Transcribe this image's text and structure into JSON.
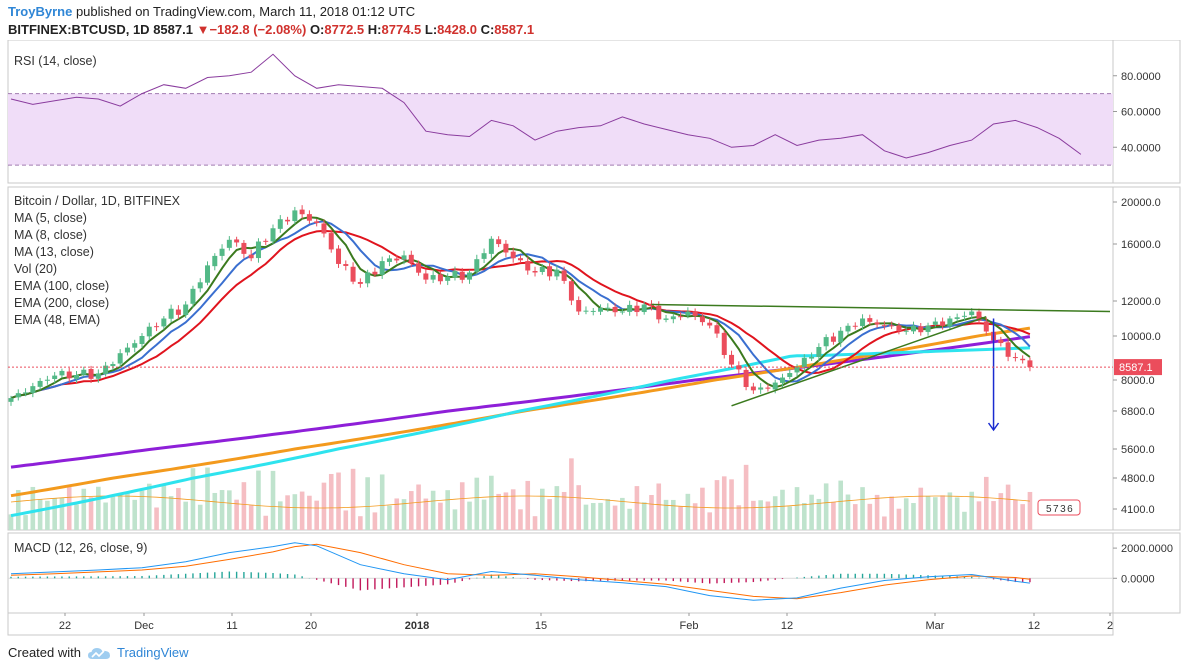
{
  "header": {
    "author": "TroyByrne",
    "published_text": "published on TradingView.com, March 11, 2018 01:12 UTC",
    "symbol": "BITFINEX:BTCUSD, 1D",
    "last": "8587.1",
    "change_arrow": "▼",
    "change": "−182.8 (−2.08%)",
    "o_label": "O:",
    "o": "8772.5",
    "h_label": "H:",
    "h": "8774.5",
    "l_label": "L:",
    "l": "8428.0",
    "c_label": "C:",
    "c": "8587.1"
  },
  "footer": {
    "created_with": "Created with",
    "brand": "TradingView",
    "icon": "tradingview-cloud-icon"
  },
  "colors": {
    "up": "#53b987",
    "down": "#eb4d5c",
    "ma5": "#3b7a1e",
    "ma8": "#3a6fd0",
    "ma13": "#e0141e",
    "ema100": "#f39a1d",
    "ema200": "#8e1fd8",
    "ema48": "#2ee3ee",
    "rsi": "#8a3c9e",
    "macd": "#2196f3",
    "signal": "#ff6d00",
    "trendline": "#3b7a1e",
    "projection": "#1a2bd0"
  },
  "chart_data": [
    {
      "type": "line",
      "title": "RSI (14, close)",
      "y_ticks": [
        "80.0000",
        "60.0000",
        "40.0000"
      ],
      "ylim": [
        20,
        100
      ],
      "bands": [
        30,
        70
      ],
      "series": [
        {
          "name": "RSI",
          "x_index": [
            0,
            3,
            6,
            9,
            12,
            15,
            18,
            21,
            24,
            27,
            30,
            33,
            36,
            39,
            42,
            45,
            48,
            51,
            54,
            57,
            60,
            63,
            66,
            69,
            72,
            75,
            78,
            81,
            84,
            87,
            90,
            93,
            96,
            99,
            102,
            105,
            108,
            111,
            114,
            117,
            120,
            123,
            126,
            129,
            132,
            135,
            138,
            141,
            144,
            147
          ],
          "values": [
            67,
            64,
            66,
            68,
            67,
            63,
            70,
            75,
            73,
            79,
            80,
            82,
            92,
            80,
            73,
            75,
            74,
            73,
            65,
            49,
            47,
            46,
            55,
            52,
            44,
            49,
            51,
            52,
            57,
            53,
            50,
            47,
            45,
            40,
            41,
            47,
            41,
            44,
            45,
            47,
            38,
            34,
            37,
            41,
            44,
            53,
            55,
            51,
            45,
            36
          ]
        }
      ]
    },
    {
      "type": "candlestick",
      "title": "Bitcoin / Dollar, 1D, BITFINEX",
      "legend": [
        "MA (5, close)",
        "MA (8, close)",
        "MA (13, close)",
        "Vol (20)",
        "EMA (100, close)",
        "EMA (200, close)",
        "EMA (48, EMA)"
      ],
      "y_ticks": [
        20000,
        16000,
        12000,
        10000,
        8000,
        6800,
        5600,
        4800,
        4100
      ],
      "last_price_label": "8587.1",
      "last_price": 8587.1,
      "x_ticks": [
        "22",
        "Dec",
        "11",
        "20",
        "2018",
        "15",
        "Feb",
        "12",
        "Mar",
        "12",
        "2"
      ],
      "close_anchors": [
        [
          0,
          7300
        ],
        [
          6,
          8200
        ],
        [
          12,
          8300
        ],
        [
          18,
          10000
        ],
        [
          21,
          11000
        ],
        [
          24,
          11800
        ],
        [
          27,
          14500
        ],
        [
          30,
          16400
        ],
        [
          33,
          15000
        ],
        [
          36,
          17500
        ],
        [
          39,
          19200
        ],
        [
          42,
          18000
        ],
        [
          45,
          14600
        ],
        [
          48,
          13200
        ],
        [
          51,
          14800
        ],
        [
          54,
          15200
        ],
        [
          57,
          13500
        ],
        [
          60,
          13700
        ],
        [
          63,
          14000
        ],
        [
          66,
          16500
        ],
        [
          69,
          15000
        ],
        [
          72,
          14000
        ],
        [
          75,
          14200
        ],
        [
          78,
          11400
        ],
        [
          81,
          11600
        ],
        [
          84,
          11400
        ],
        [
          87,
          11800
        ],
        [
          90,
          11000
        ],
        [
          93,
          11400
        ],
        [
          96,
          10600
        ],
        [
          99,
          8700
        ],
        [
          102,
          7600
        ],
        [
          105,
          7900
        ],
        [
          108,
          8600
        ],
        [
          111,
          9500
        ],
        [
          114,
          10300
        ],
        [
          117,
          11000
        ],
        [
          120,
          10600
        ],
        [
          123,
          10300
        ],
        [
          126,
          10600
        ],
        [
          129,
          11000
        ],
        [
          132,
          11400
        ],
        [
          135,
          9800
        ],
        [
          138,
          9000
        ],
        [
          140,
          8587.1
        ]
      ],
      "volume_note": "Vol (20) histogram, colored by candle direction",
      "volume_label": "5736",
      "trendlines": [
        {
          "name": "resistance",
          "from": [
            88,
            11800
          ],
          "to": [
            151,
            11400
          ]
        },
        {
          "name": "support",
          "from": [
            99,
            7000
          ],
          "to": [
            134,
            11100
          ]
        }
      ],
      "projection_arrow": {
        "from": [
          135,
          11000
        ],
        "to": [
          135,
          6200
        ]
      }
    },
    {
      "type": "line",
      "title": "MACD (12, 26, close, 9)",
      "y_ticks": [
        "2000.0000",
        "0.0000"
      ],
      "ylim": [
        -2300,
        3000
      ],
      "series": [
        {
          "name": "MACD",
          "x_index": [
            0,
            6,
            12,
            18,
            24,
            30,
            36,
            39,
            42,
            48,
            54,
            60,
            66,
            72,
            78,
            84,
            90,
            96,
            102,
            108,
            114,
            120,
            126,
            132,
            138,
            140
          ],
          "values": [
            300,
            420,
            550,
            700,
            1100,
            1700,
            2100,
            2350,
            2150,
            900,
            300,
            -100,
            450,
            200,
            -100,
            -300,
            -550,
            -1150,
            -1450,
            -1300,
            -650,
            -150,
            100,
            250,
            -200,
            -320
          ]
        },
        {
          "name": "Signal",
          "x_index": [
            0,
            6,
            12,
            18,
            24,
            30,
            36,
            39,
            42,
            48,
            54,
            60,
            66,
            72,
            78,
            84,
            90,
            96,
            102,
            108,
            114,
            120,
            126,
            132,
            138,
            140
          ],
          "values": [
            200,
            300,
            420,
            550,
            800,
            1250,
            1750,
            2100,
            2250,
            1700,
            900,
            300,
            200,
            300,
            100,
            -150,
            -400,
            -800,
            -1200,
            -1350,
            -950,
            -450,
            -100,
            150,
            50,
            -60
          ]
        }
      ]
    }
  ]
}
